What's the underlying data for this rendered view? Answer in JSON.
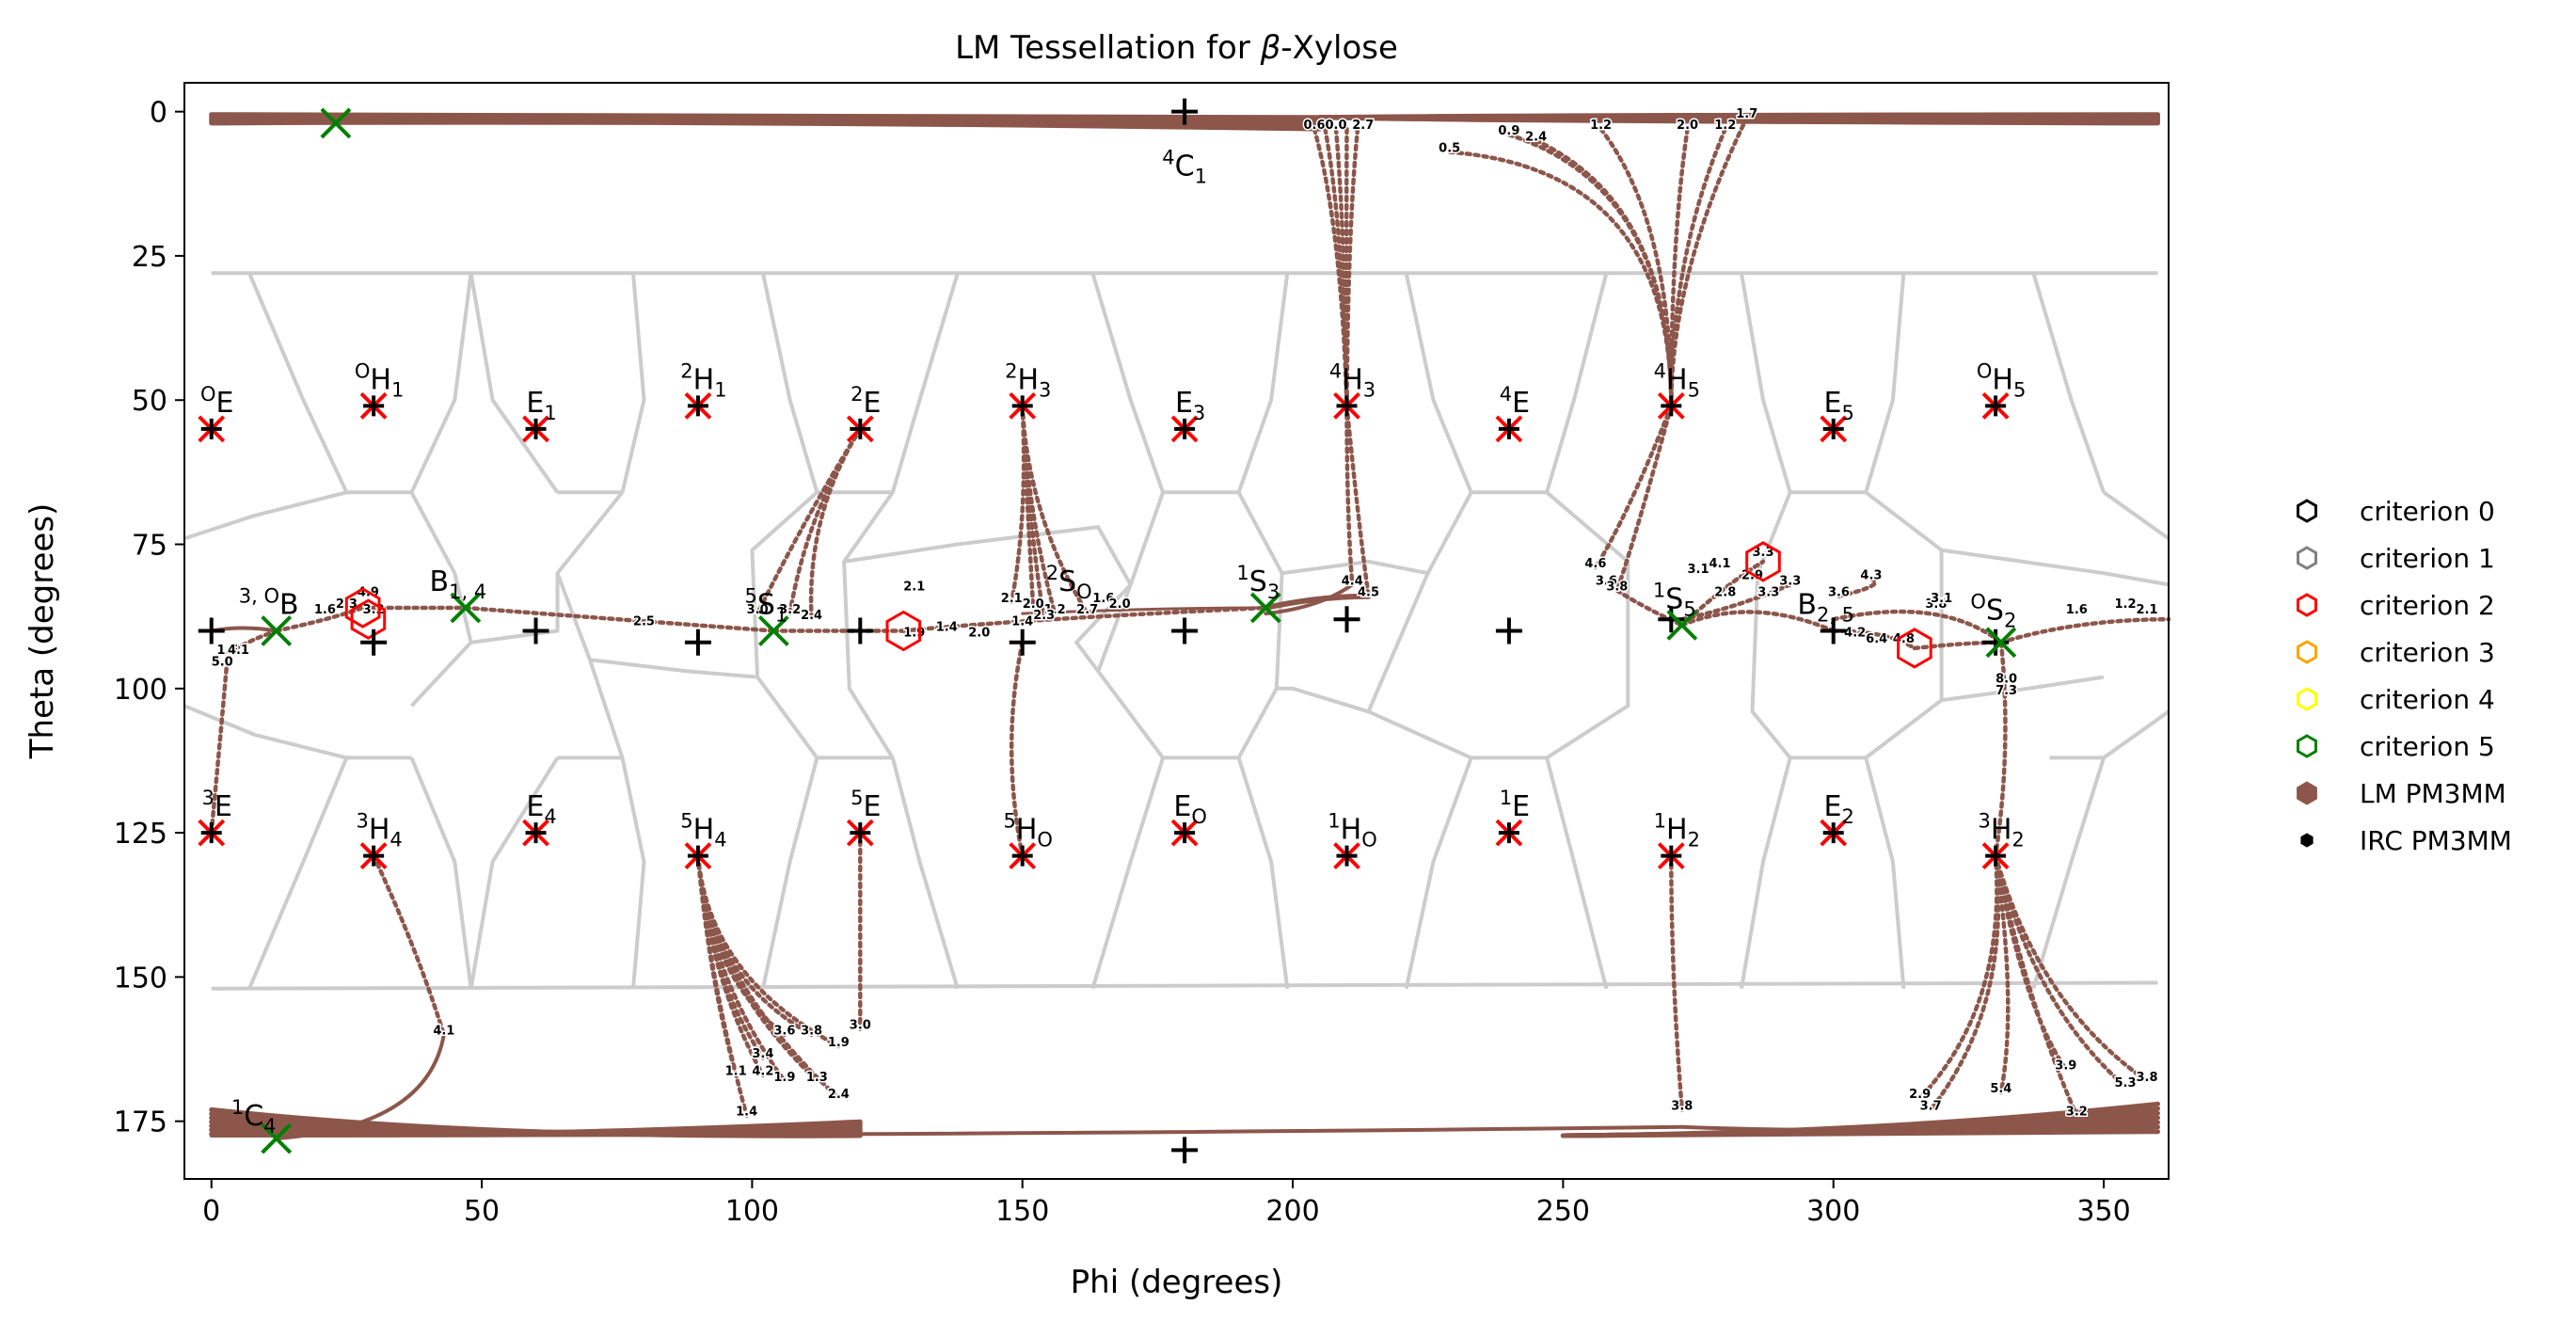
{
  "chart_data": {
    "type": "scatter",
    "title": "LM Tessellation for β-Xylose",
    "title_parts": {
      "prefix": "LM Tessellation for ",
      "greek": "β",
      "suffix": "-Xylose"
    },
    "xlabel": "Phi (degrees)",
    "ylabel": "Theta (degrees)",
    "xlim": [
      -5,
      362
    ],
    "ylim": [
      185,
      -5
    ],
    "y_inverted": true,
    "xticks": [
      0,
      50,
      100,
      150,
      200,
      250,
      300,
      350
    ],
    "yticks": [
      0,
      25,
      50,
      75,
      100,
      125,
      150,
      175
    ],
    "grid": false,
    "legend_position": "right",
    "colors": {
      "lm": "#8c564b",
      "irc": "#000000",
      "tessellation": "#cccccc",
      "criterion0": "#000000",
      "criterion1": "#808080",
      "criterion2": "#ff0000",
      "criterion3": "#ffa500",
      "criterion4": "#ffff00",
      "criterion5": "#008000",
      "canonical": "#ff0000",
      "green_x": "#008000"
    },
    "legend": [
      {
        "label": "criterion 0",
        "marker": "hexagon-open",
        "color": "#000000"
      },
      {
        "label": "criterion 1",
        "marker": "hexagon-open",
        "color": "#808080"
      },
      {
        "label": "criterion 2",
        "marker": "hexagon-open",
        "color": "#ff0000"
      },
      {
        "label": "criterion 3",
        "marker": "hexagon-open",
        "color": "#ffa500"
      },
      {
        "label": "criterion 4",
        "marker": "hexagon-open",
        "color": "#ffff00"
      },
      {
        "label": "criterion 5",
        "marker": "hexagon-open",
        "color": "#008000"
      },
      {
        "label": "LM PM3MM",
        "marker": "hexagon-filled",
        "color": "#8c564b"
      },
      {
        "label": "IRC PM3MM",
        "marker": "hexagon-small",
        "color": "#000000"
      }
    ],
    "canonical_points": [
      {
        "sup": "O",
        "base": "E",
        "sub": "",
        "x": 0,
        "y": 55
      },
      {
        "sup": "O",
        "base": "H",
        "sub": "1",
        "x": 30,
        "y": 51
      },
      {
        "sup": "",
        "base": "E",
        "sub": "1",
        "x": 60,
        "y": 55
      },
      {
        "sup": "2",
        "base": "H",
        "sub": "1",
        "x": 90,
        "y": 51
      },
      {
        "sup": "2",
        "base": "E",
        "sub": "",
        "x": 120,
        "y": 55
      },
      {
        "sup": "2",
        "base": "H",
        "sub": "3",
        "x": 150,
        "y": 51
      },
      {
        "sup": "",
        "base": "E",
        "sub": "3",
        "x": 180,
        "y": 55
      },
      {
        "sup": "4",
        "base": "H",
        "sub": "3",
        "x": 210,
        "y": 51
      },
      {
        "sup": "4",
        "base": "E",
        "sub": "",
        "x": 240,
        "y": 55
      },
      {
        "sup": "4",
        "base": "H",
        "sub": "5",
        "x": 270,
        "y": 51
      },
      {
        "sup": "",
        "base": "E",
        "sub": "5",
        "x": 300,
        "y": 55
      },
      {
        "sup": "O",
        "base": "H",
        "sub": "5",
        "x": 330,
        "y": 51
      },
      {
        "sup": "3",
        "base": "E",
        "sub": "",
        "x": 0,
        "y": 125
      },
      {
        "sup": "3",
        "base": "H",
        "sub": "4",
        "x": 30,
        "y": 129
      },
      {
        "sup": "",
        "base": "E",
        "sub": "4",
        "x": 60,
        "y": 125
      },
      {
        "sup": "5",
        "base": "H",
        "sub": "4",
        "x": 90,
        "y": 129
      },
      {
        "sup": "5",
        "base": "E",
        "sub": "",
        "x": 120,
        "y": 125
      },
      {
        "sup": "5",
        "base": "H",
        "sub": "O",
        "x": 150,
        "y": 129
      },
      {
        "sup": "",
        "base": "E",
        "sub": "O",
        "x": 180,
        "y": 125
      },
      {
        "sup": "1",
        "base": "H",
        "sub": "O",
        "x": 210,
        "y": 129
      },
      {
        "sup": "1",
        "base": "E",
        "sub": "",
        "x": 240,
        "y": 125
      },
      {
        "sup": "1",
        "base": "H",
        "sub": "2",
        "x": 270,
        "y": 129
      },
      {
        "sup": "",
        "base": "E",
        "sub": "2",
        "x": 300,
        "y": 125
      },
      {
        "sup": "3",
        "base": "H",
        "sub": "2",
        "x": 330,
        "y": 129
      }
    ],
    "pole_labels": [
      {
        "sup": "4",
        "base": "C",
        "sub": "1",
        "x": 180,
        "y": 0
      },
      {
        "sup": "1",
        "base": "C",
        "sub": "4",
        "x": 12,
        "y": 178
      }
    ],
    "boat_labels": [
      {
        "sup": "3, O",
        "base": "B",
        "sub": "",
        "x": 12,
        "y": 90
      },
      {
        "sup": "",
        "base": "B",
        "sub": "1, 4",
        "x": 47,
        "y": 86
      },
      {
        "sup": "5",
        "base": "S",
        "sub": "1",
        "x": 104,
        "y": 90
      },
      {
        "sup": "2",
        "base": "S",
        "sub": "O",
        "x": 160,
        "y": 86
      },
      {
        "sup": "1",
        "base": "S",
        "sub": "3",
        "x": 195,
        "y": 86
      },
      {
        "sup": "1",
        "base": "S",
        "sub": "5",
        "x": 272,
        "y": 89
      },
      {
        "sup": "",
        "base": "B",
        "sub": "2, 5",
        "x": 300,
        "y": 90
      },
      {
        "sup": "O",
        "base": "S",
        "sub": "2",
        "x": 331,
        "y": 91
      }
    ],
    "lm_points": [
      {
        "x": 23,
        "y": 2
      },
      {
        "x": 12,
        "y": 178
      },
      {
        "x": 12,
        "y": 90
      },
      {
        "x": 47,
        "y": 86
      },
      {
        "x": 104,
        "y": 90
      },
      {
        "x": 195,
        "y": 86
      },
      {
        "x": 272,
        "y": 89
      },
      {
        "x": 331,
        "y": 92
      }
    ],
    "irc_points": [
      {
        "x": 180,
        "y": 0
      },
      {
        "x": 180,
        "y": 180
      },
      {
        "x": 0,
        "y": 90
      },
      {
        "x": 30,
        "y": 92
      },
      {
        "x": 60,
        "y": 90
      },
      {
        "x": 90,
        "y": 92
      },
      {
        "x": 120,
        "y": 90
      },
      {
        "x": 150,
        "y": 92
      },
      {
        "x": 180,
        "y": 90
      },
      {
        "x": 210,
        "y": 88
      },
      {
        "x": 240,
        "y": 90
      },
      {
        "x": 270,
        "y": 88
      },
      {
        "x": 300,
        "y": 90
      },
      {
        "x": 330,
        "y": 92
      }
    ],
    "criterion2_markers": [
      {
        "x": 28,
        "y": 86
      },
      {
        "x": 29,
        "y": 88
      },
      {
        "x": 128,
        "y": 90
      },
      {
        "x": 287,
        "y": 78
      },
      {
        "x": 315,
        "y": 93
      }
    ],
    "path_labels": [
      {
        "text": "0.6",
        "x": 204,
        "y": 3
      },
      {
        "text": "0.0",
        "x": 208,
        "y": 3
      },
      {
        "text": "2.7",
        "x": 213,
        "y": 3
      },
      {
        "text": "0.5",
        "x": 229,
        "y": 7
      },
      {
        "text": "0.9",
        "x": 240,
        "y": 4
      },
      {
        "text": "2.4",
        "x": 245,
        "y": 5
      },
      {
        "text": "1.2",
        "x": 257,
        "y": 3
      },
      {
        "text": "2.0",
        "x": 273,
        "y": 3
      },
      {
        "text": "1.2",
        "x": 280,
        "y": 3
      },
      {
        "text": "1.7",
        "x": 284,
        "y": 1
      },
      {
        "text": "4.6",
        "x": 256,
        "y": 79
      },
      {
        "text": "3.6",
        "x": 258,
        "y": 82
      },
      {
        "text": "3.8",
        "x": 260,
        "y": 83
      },
      {
        "text": "3.1",
        "x": 275,
        "y": 80
      },
      {
        "text": "4.1",
        "x": 279,
        "y": 79
      },
      {
        "text": "2.8",
        "x": 280,
        "y": 84
      },
      {
        "text": "3.3",
        "x": 287,
        "y": 77
      },
      {
        "text": "2.9",
        "x": 285,
        "y": 81
      },
      {
        "text": "3.3",
        "x": 292,
        "y": 82
      },
      {
        "text": "3.3",
        "x": 288,
        "y": 84
      },
      {
        "text": "4.3",
        "x": 307,
        "y": 81
      },
      {
        "text": "3.6",
        "x": 301,
        "y": 84
      },
      {
        "text": "4.2",
        "x": 304,
        "y": 91
      },
      {
        "text": "6.4",
        "x": 308,
        "y": 92
      },
      {
        "text": "4.8",
        "x": 313,
        "y": 92
      },
      {
        "text": "3.8",
        "x": 319,
        "y": 86
      },
      {
        "text": "3.1",
        "x": 320,
        "y": 85
      },
      {
        "text": "1.6",
        "x": 345,
        "y": 87
      },
      {
        "text": "1.2",
        "x": 354,
        "y": 86
      },
      {
        "text": "2.1",
        "x": 358,
        "y": 87
      },
      {
        "text": "8.0",
        "x": 332,
        "y": 99
      },
      {
        "text": "7.3",
        "x": 332,
        "y": 101
      },
      {
        "text": "4.4",
        "x": 211,
        "y": 82
      },
      {
        "text": "4.5",
        "x": 214,
        "y": 84
      },
      {
        "text": "2.1",
        "x": 130,
        "y": 83
      },
      {
        "text": "2.1",
        "x": 148,
        "y": 85
      },
      {
        "text": "2.0",
        "x": 152,
        "y": 86
      },
      {
        "text": "1.2",
        "x": 156,
        "y": 87
      },
      {
        "text": "2.7",
        "x": 162,
        "y": 87
      },
      {
        "text": "1.6",
        "x": 165,
        "y": 85
      },
      {
        "text": "2.0",
        "x": 168,
        "y": 86
      },
      {
        "text": "1.4",
        "x": 150,
        "y": 89
      },
      {
        "text": "2.3",
        "x": 154,
        "y": 88
      },
      {
        "text": "1.9",
        "x": 130,
        "y": 91
      },
      {
        "text": "1.4",
        "x": 136,
        "y": 90
      },
      {
        "text": "2.0",
        "x": 142,
        "y": 91
      },
      {
        "text": "3.0",
        "x": 101,
        "y": 87
      },
      {
        "text": "3.2",
        "x": 107,
        "y": 87
      },
      {
        "text": "2.4",
        "x": 111,
        "y": 88
      },
      {
        "text": "2.5",
        "x": 80,
        "y": 89
      },
      {
        "text": "4.9",
        "x": 29,
        "y": 84
      },
      {
        "text": "1.6",
        "x": 21,
        "y": 87
      },
      {
        "text": "2.3",
        "x": 25,
        "y": 86
      },
      {
        "text": "3.2",
        "x": 30,
        "y": 87
      },
      {
        "text": "1.5",
        "x": 3,
        "y": 94
      },
      {
        "text": "4.1",
        "x": 5,
        "y": 94
      },
      {
        "text": "5.0",
        "x": 2,
        "y": 96
      },
      {
        "text": "4.1",
        "x": 43,
        "y": 160
      },
      {
        "text": "3.0",
        "x": 120,
        "y": 159
      },
      {
        "text": "3.6",
        "x": 106,
        "y": 160
      },
      {
        "text": "3.8",
        "x": 111,
        "y": 160
      },
      {
        "text": "3.4",
        "x": 102,
        "y": 164
      },
      {
        "text": "1.9",
        "x": 116,
        "y": 162
      },
      {
        "text": "1.1",
        "x": 97,
        "y": 167
      },
      {
        "text": "4.2",
        "x": 102,
        "y": 167
      },
      {
        "text": "1.9",
        "x": 106,
        "y": 168
      },
      {
        "text": "1.3",
        "x": 112,
        "y": 168
      },
      {
        "text": "2.4",
        "x": 116,
        "y": 171
      },
      {
        "text": "1.4",
        "x": 99,
        "y": 174
      },
      {
        "text": "3.8",
        "x": 272,
        "y": 173
      },
      {
        "text": "2.9",
        "x": 316,
        "y": 171
      },
      {
        "text": "3.7",
        "x": 318,
        "y": 173
      },
      {
        "text": "5.4",
        "x": 331,
        "y": 170
      },
      {
        "text": "3.9",
        "x": 343,
        "y": 166
      },
      {
        "text": "3.2",
        "x": 345,
        "y": 174
      },
      {
        "text": "3.8",
        "x": 358,
        "y": 168
      },
      {
        "text": "5.3",
        "x": 354,
        "y": 169
      }
    ]
  }
}
